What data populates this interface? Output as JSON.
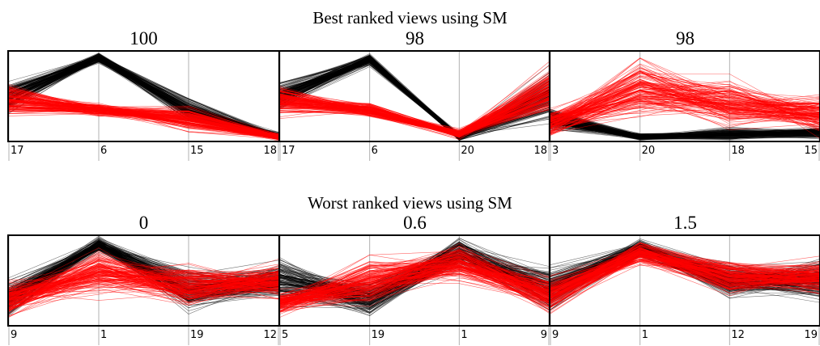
{
  "colors": {
    "class_a": "#000000",
    "class_b": "#ff0000",
    "axis": "#b0b0b0",
    "frame": "#000000"
  },
  "sections": [
    {
      "title": "Best ranked views using SM"
    },
    {
      "title": "Worst ranked views using SM"
    }
  ],
  "chart_data": [
    {
      "type": "parallel-coordinates",
      "section": 0,
      "score": "100",
      "axes": [
        "17",
        "6",
        "15",
        "18"
      ]
    },
    {
      "type": "parallel-coordinates",
      "section": 0,
      "score": "98",
      "axes": [
        "17",
        "6",
        "20",
        "18"
      ]
    },
    {
      "type": "parallel-coordinates",
      "section": 0,
      "score": "98",
      "axes": [
        "3",
        "20",
        "18",
        "15"
      ]
    },
    {
      "type": "parallel-coordinates",
      "section": 1,
      "score": "0",
      "axes": [
        "9",
        "1",
        "19",
        "12"
      ]
    },
    {
      "type": "parallel-coordinates",
      "section": 1,
      "score": "0.6",
      "axes": [
        "5",
        "19",
        "1",
        "9"
      ]
    },
    {
      "type": "parallel-coordinates",
      "section": 1,
      "score": "1.5",
      "axes": [
        "9",
        "1",
        "12",
        "19"
      ]
    }
  ]
}
